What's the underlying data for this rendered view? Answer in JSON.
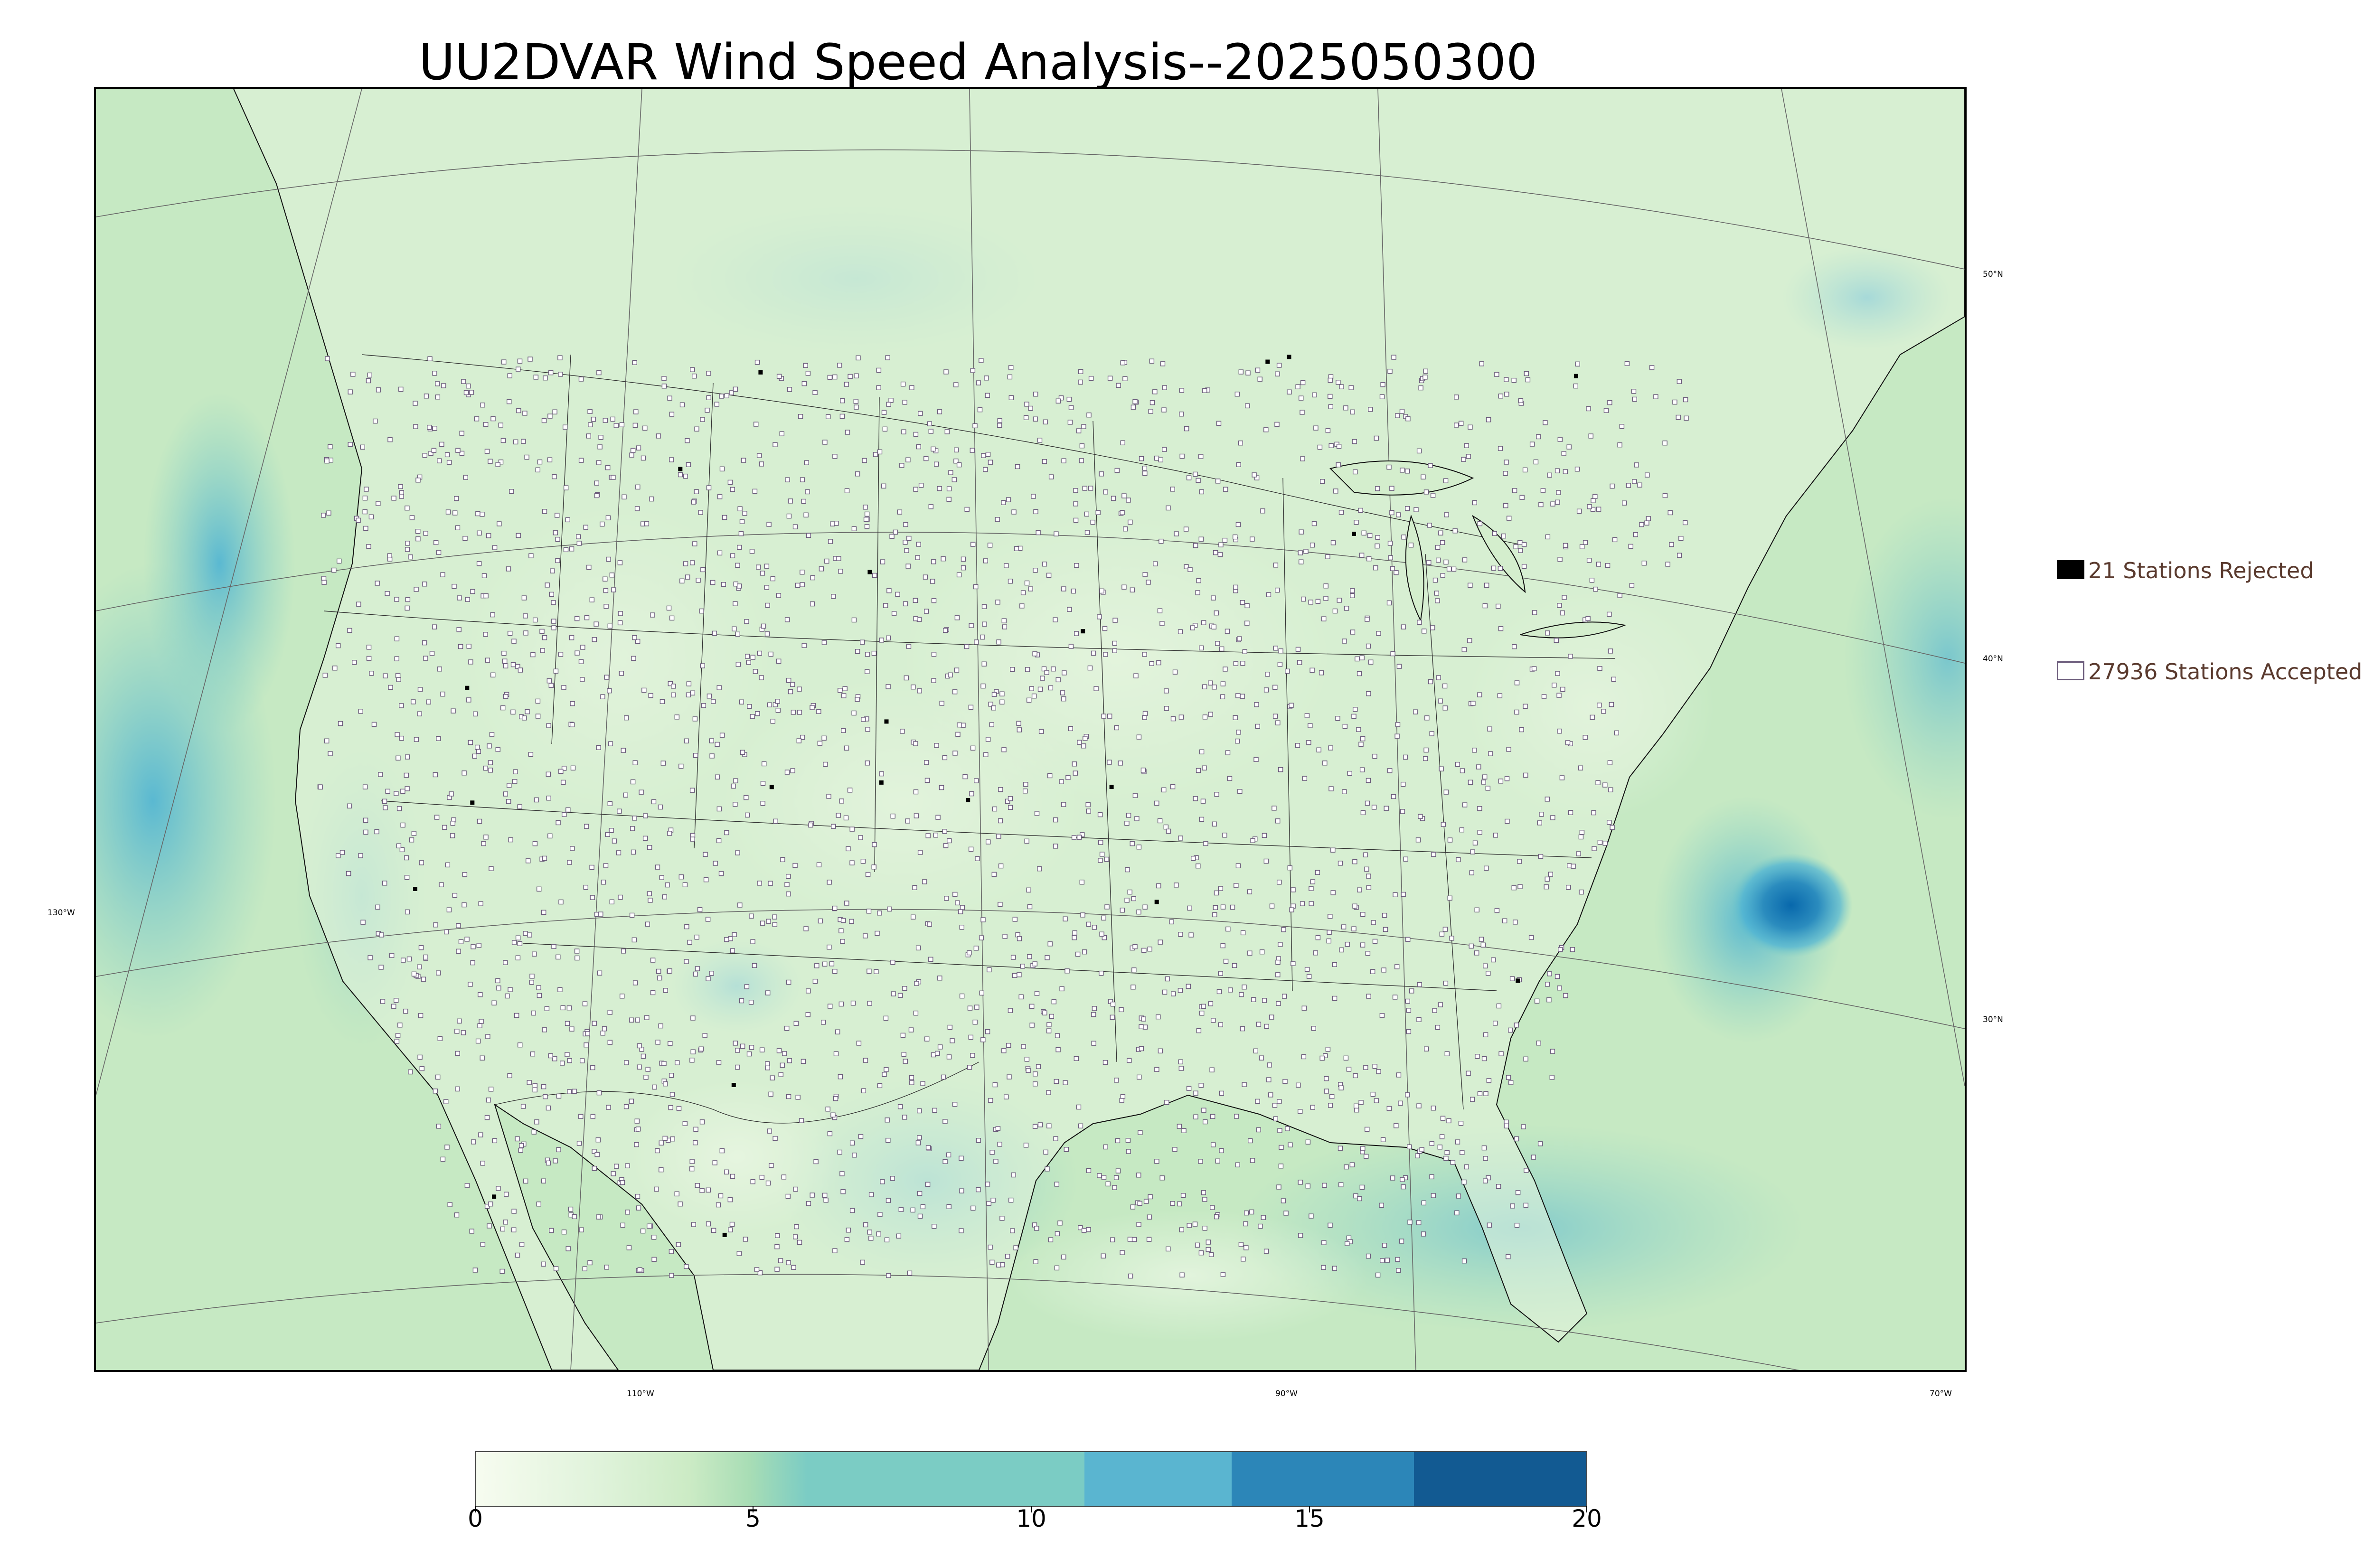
{
  "title": "UU2DVAR Wind Speed Analysis--2025050300",
  "graticule": {
    "lat_labels": [
      "50°N",
      "40°N",
      "30°N"
    ],
    "lon_labels": [
      "130°W",
      "110°W",
      "90°W",
      "70°W"
    ]
  },
  "legend": {
    "rejected": {
      "label": "21 Stations Rejected",
      "color": "#000000"
    },
    "accepted": {
      "label": "27936 Stations Accepted",
      "color": "#ffffff"
    }
  },
  "colorbar": {
    "ticks": [
      "0",
      "5",
      "10",
      "15",
      "20"
    ],
    "range": [
      0,
      20
    ],
    "colors": [
      "#f7fcf0",
      "#e0f3db",
      "#ccebc5",
      "#a8ddb5",
      "#7bccc4",
      "#4eb3d3",
      "#2b8cbe",
      "#0868ac"
    ]
  },
  "colors": {
    "land_fill": "#e6f4de",
    "ocean_fill": "#c6e9c3",
    "station_outline": "#6a5a7a"
  }
}
